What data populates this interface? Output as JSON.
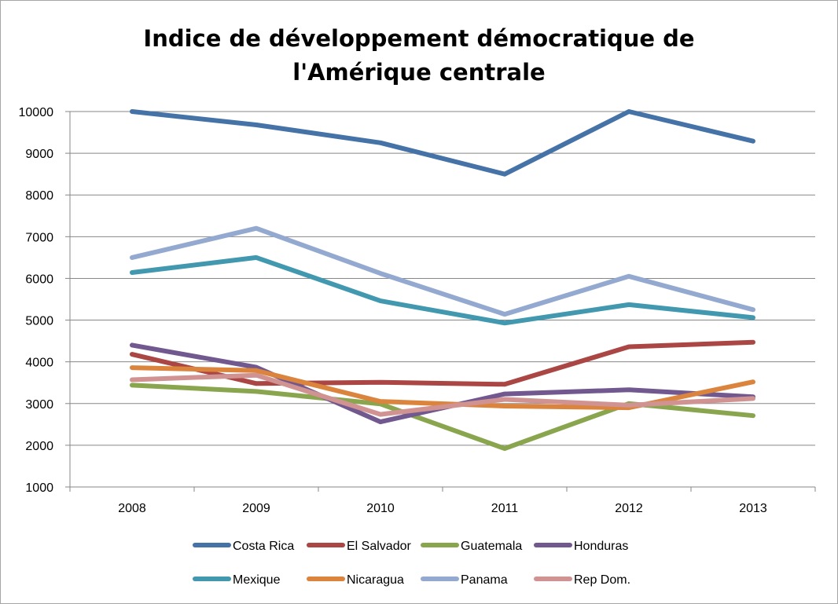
{
  "chart_data": {
    "type": "line",
    "title_line1": "Indice de développement démocratique de",
    "title_line2": "l'Amérique centrale",
    "categories": [
      "2008",
      "2009",
      "2010",
      "2011",
      "2012",
      "2013"
    ],
    "ylim": [
      1000,
      10000
    ],
    "yticks": [
      "1000",
      "2000",
      "3000",
      "4000",
      "5000",
      "6000",
      "7000",
      "8000",
      "9000",
      "10000"
    ],
    "grid": "horizontal",
    "legend_position": "bottom",
    "series": [
      {
        "name": "Costa Rica",
        "color": "#4572a7",
        "values": [
          10000,
          9680,
          9250,
          8500,
          10000,
          9290
        ]
      },
      {
        "name": "El Salvador",
        "color": "#aa4643",
        "values": [
          4180,
          3480,
          3510,
          3460,
          4360,
          4470
        ]
      },
      {
        "name": "Guatemala",
        "color": "#89a54e",
        "values": [
          3440,
          3290,
          2990,
          1920,
          3000,
          2710
        ]
      },
      {
        "name": "Honduras",
        "color": "#71588f",
        "values": [
          4400,
          3870,
          2560,
          3230,
          3330,
          3160
        ]
      },
      {
        "name": "Mexique",
        "color": "#4198af",
        "values": [
          6140,
          6500,
          5460,
          4930,
          5370,
          5060
        ]
      },
      {
        "name": "Nicaragua",
        "color": "#db843d",
        "values": [
          3860,
          3790,
          3050,
          2940,
          2900,
          3520
        ]
      },
      {
        "name": "Panama",
        "color": "#93a9cf",
        "values": [
          6500,
          7200,
          6120,
          5140,
          6050,
          5250
        ]
      },
      {
        "name": "Rep Dom.",
        "color": "#d19392",
        "values": [
          3570,
          3680,
          2740,
          3100,
          2960,
          3120
        ]
      }
    ]
  }
}
